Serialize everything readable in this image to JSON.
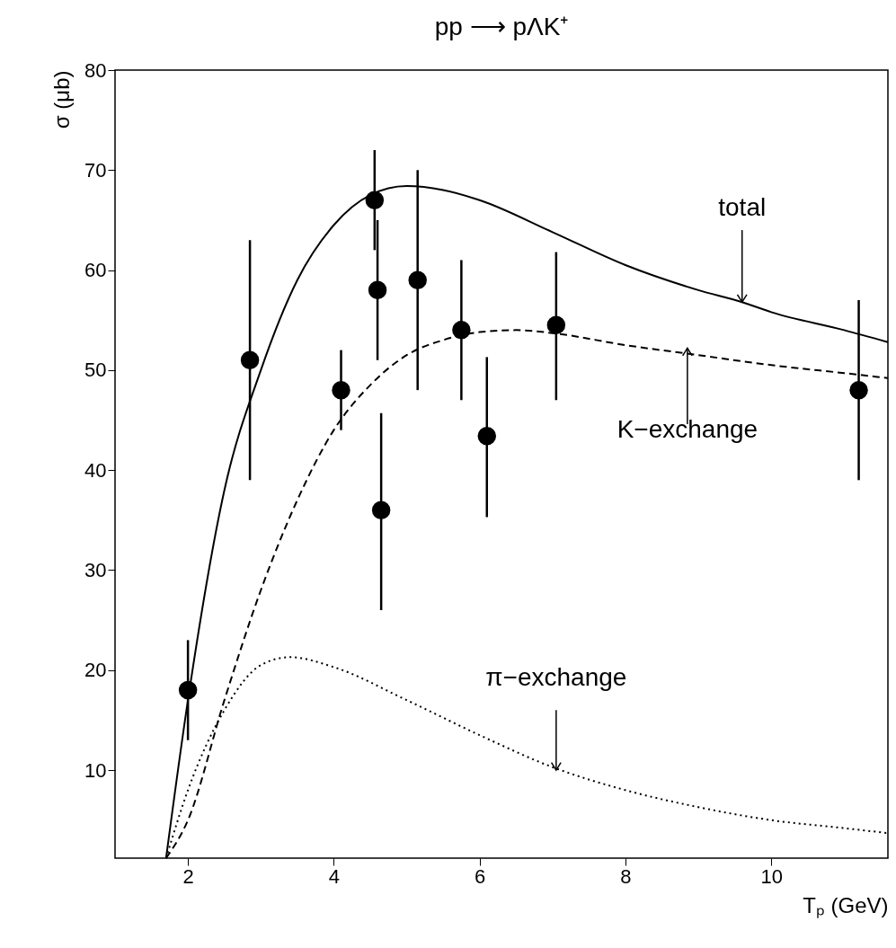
{
  "chart_data": {
    "type": "scatter",
    "title": "pp ⟶ pΛK⁺",
    "xlabel": "Tₚ  (GeV)",
    "ylabel": "σ  (μb)",
    "xlim": [
      1,
      11.6
    ],
    "ylim": [
      1.2,
      80
    ],
    "xticks": [
      2,
      4,
      6,
      8,
      10
    ],
    "yticks": [
      10,
      20,
      30,
      40,
      50,
      60,
      70,
      80
    ],
    "grid": false,
    "annotations": [
      {
        "text": "total",
        "x": 9.6,
        "y": 56.8
      },
      {
        "text": "K−exchange",
        "x": 8.85,
        "y": 52.2
      },
      {
        "text": "π−exchange",
        "x": 7.05,
        "y": 10
      }
    ],
    "series": [
      {
        "color": "#000000",
        "marker": "circle",
        "x": [
          2.0,
          2.85,
          4.1,
          4.56,
          4.6,
          4.65,
          5.15,
          5.75,
          6.1,
          7.05,
          11.2
        ],
        "values": [
          18,
          51,
          48,
          67,
          58,
          36,
          59,
          54,
          43.4,
          54.5,
          48
        ],
        "errors": [
          [
            13,
            23
          ],
          [
            39,
            63
          ],
          [
            44,
            52
          ],
          [
            62,
            72
          ],
          [
            51,
            65
          ],
          [
            26,
            45.7
          ],
          [
            48,
            70
          ],
          [
            47,
            61
          ],
          [
            35.3,
            51.3
          ],
          [
            47,
            61.8
          ],
          [
            39,
            57
          ]
        ]
      },
      {
        "type": "line",
        "color": "#000000",
        "line_style": "solid",
        "x": [
          1.7,
          2,
          2.5,
          3,
          3.5,
          4,
          4.5,
          5,
          5.5,
          6,
          7,
          8,
          9,
          9.6,
          10,
          11,
          11.6
        ],
        "values": [
          1.2,
          17,
          38,
          50,
          59,
          64.5,
          67.5,
          68.4,
          68,
          67,
          63.8,
          60.5,
          58,
          56.8,
          55.8,
          54,
          52.8
        ]
      },
      {
        "type": "line",
        "color": "#000000",
        "line_style": "dashed",
        "x": [
          1.7,
          2,
          2.5,
          3,
          3.5,
          4,
          4.5,
          5,
          5.5,
          6,
          6.5,
          7,
          8,
          9,
          10,
          11,
          11.6
        ],
        "values": [
          1.2,
          5,
          17,
          28,
          37,
          44,
          48.5,
          51.5,
          53,
          53.8,
          54,
          53.7,
          52.5,
          51.5,
          50.5,
          49.7,
          49.2
        ]
      },
      {
        "type": "line",
        "color": "#000000",
        "line_style": "dotted",
        "x": [
          1.7,
          2,
          2.5,
          3,
          3.4,
          4,
          5,
          6,
          7,
          8,
          9,
          10,
          11,
          11.6
        ],
        "values": [
          1.2,
          8,
          16,
          20.5,
          21.3,
          20.3,
          17,
          13.5,
          10.3,
          8,
          6.3,
          5,
          4.2,
          3.7
        ]
      }
    ]
  }
}
